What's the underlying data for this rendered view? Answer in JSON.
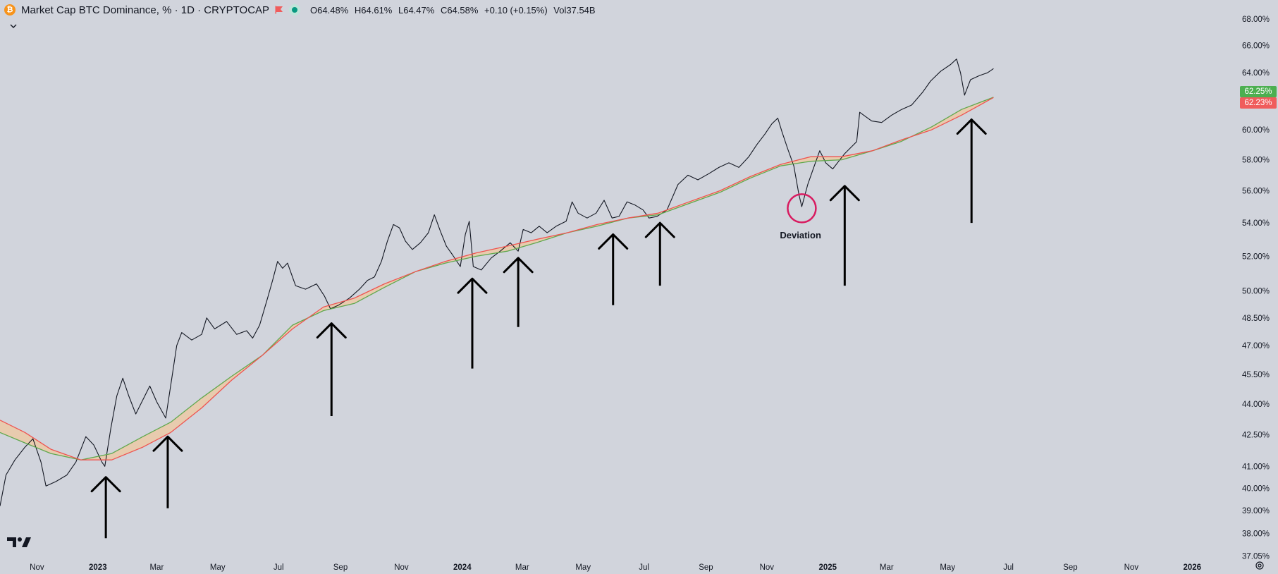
{
  "header": {
    "title": "Market Cap BTC Dominance, % · 1D · CRYPTOCAP",
    "btc_glyph": "₿",
    "open": "O64.48%",
    "high": "H64.61%",
    "low": "L64.47%",
    "close": "C64.58%",
    "change": "+0.10 (+0.15%)",
    "volume": "Vol37.54B",
    "icons": [
      "bitcoin-icon",
      "flag-icon",
      "market-status-icon",
      "chevron-down-icon",
      "tradingview-logo",
      "settings-icon"
    ]
  },
  "price_tags": {
    "green": {
      "label": "62.25%",
      "color": "#4caf50"
    },
    "red": {
      "label": "62.23%",
      "color": "#f05c5c"
    }
  },
  "annotation": {
    "label": "Deviation",
    "color": "#d81b60"
  },
  "chart_data": {
    "type": "line",
    "scale": "log",
    "ylim": [
      37.0,
      68.5
    ],
    "y_ticks": [
      "68.00%",
      "66.00%",
      "64.00%",
      "62.00%",
      "60.00%",
      "58.00%",
      "56.00%",
      "54.00%",
      "52.00%",
      "50.00%",
      "48.50%",
      "47.00%",
      "45.50%",
      "44.00%",
      "42.50%",
      "41.00%",
      "40.00%",
      "39.00%",
      "38.00%",
      "37.05%"
    ],
    "y_tick_values": [
      68,
      66,
      64,
      62,
      60,
      58,
      56,
      54,
      52,
      50,
      48.5,
      47,
      45.5,
      44,
      42.5,
      41,
      40,
      39,
      38,
      37.05
    ],
    "x_ticks": [
      {
        "label": "Nov",
        "bold": false,
        "date": "2022-11-01"
      },
      {
        "label": "2023",
        "bold": true,
        "date": "2023-01-01"
      },
      {
        "label": "Mar",
        "bold": false,
        "date": "2023-03-01"
      },
      {
        "label": "May",
        "bold": false,
        "date": "2023-05-01"
      },
      {
        "label": "Jul",
        "bold": false,
        "date": "2023-07-01"
      },
      {
        "label": "Sep",
        "bold": false,
        "date": "2023-09-01"
      },
      {
        "label": "Nov",
        "bold": false,
        "date": "2023-11-01"
      },
      {
        "label": "2024",
        "bold": true,
        "date": "2024-01-01"
      },
      {
        "label": "Mar",
        "bold": false,
        "date": "2024-03-01"
      },
      {
        "label": "May",
        "bold": false,
        "date": "2024-05-01"
      },
      {
        "label": "Jul",
        "bold": false,
        "date": "2024-07-01"
      },
      {
        "label": "Sep",
        "bold": false,
        "date": "2024-09-01"
      },
      {
        "label": "Nov",
        "bold": false,
        "date": "2024-11-01"
      },
      {
        "label": "2025",
        "bold": true,
        "date": "2025-01-01"
      },
      {
        "label": "Mar",
        "bold": false,
        "date": "2025-03-01"
      },
      {
        "label": "May",
        "bold": false,
        "date": "2025-05-01"
      },
      {
        "label": "Jul",
        "bold": false,
        "date": "2025-07-01"
      },
      {
        "label": "Sep",
        "bold": false,
        "date": "2025-09-01"
      },
      {
        "label": "Nov",
        "bold": false,
        "date": "2025-11-01"
      },
      {
        "label": "2026",
        "bold": true,
        "date": "2026-01-01"
      }
    ],
    "xlim": [
      "2022-09-25",
      "2026-02-15"
    ],
    "series": [
      {
        "color": "#131722",
        "points": [
          [
            "2022-09-25",
            39.2
          ],
          [
            "2022-10-01",
            40.6
          ],
          [
            "2022-10-10",
            41.3
          ],
          [
            "2022-10-20",
            41.9
          ],
          [
            "2022-10-28",
            42.3
          ],
          [
            "2022-11-05",
            41.2
          ],
          [
            "2022-11-10",
            40.1
          ],
          [
            "2022-11-20",
            40.3
          ],
          [
            "2022-12-01",
            40.6
          ],
          [
            "2022-12-10",
            41.2
          ],
          [
            "2022-12-20",
            42.4
          ],
          [
            "2022-12-28",
            42.0
          ],
          [
            "2023-01-05",
            41.2
          ],
          [
            "2023-01-08",
            41.0
          ],
          [
            "2023-01-14",
            42.8
          ],
          [
            "2023-01-20",
            44.4
          ],
          [
            "2023-01-26",
            45.3
          ],
          [
            "2023-02-01",
            44.4
          ],
          [
            "2023-02-08",
            43.5
          ],
          [
            "2023-02-15",
            44.2
          ],
          [
            "2023-02-22",
            44.9
          ],
          [
            "2023-03-01",
            44.1
          ],
          [
            "2023-03-10",
            43.3
          ],
          [
            "2023-03-17",
            45.6
          ],
          [
            "2023-03-21",
            47.0
          ],
          [
            "2023-03-26",
            47.7
          ],
          [
            "2023-04-05",
            47.3
          ],
          [
            "2023-04-15",
            47.6
          ],
          [
            "2023-04-20",
            48.5
          ],
          [
            "2023-04-28",
            47.9
          ],
          [
            "2023-05-10",
            48.3
          ],
          [
            "2023-05-20",
            47.6
          ],
          [
            "2023-05-30",
            47.8
          ],
          [
            "2023-06-05",
            47.4
          ],
          [
            "2023-06-12",
            48.1
          ],
          [
            "2023-06-20",
            49.6
          ],
          [
            "2023-06-25",
            50.6
          ],
          [
            "2023-06-30",
            51.7
          ],
          [
            "2023-07-05",
            51.3
          ],
          [
            "2023-07-10",
            51.6
          ],
          [
            "2023-07-18",
            50.3
          ],
          [
            "2023-07-28",
            50.1
          ],
          [
            "2023-08-08",
            50.4
          ],
          [
            "2023-08-16",
            49.7
          ],
          [
            "2023-08-22",
            49.0
          ],
          [
            "2023-08-30",
            49.2
          ],
          [
            "2023-09-10",
            49.6
          ],
          [
            "2023-09-20",
            50.1
          ],
          [
            "2023-09-28",
            50.6
          ],
          [
            "2023-10-05",
            50.8
          ],
          [
            "2023-10-12",
            51.7
          ],
          [
            "2023-10-18",
            52.9
          ],
          [
            "2023-10-24",
            53.9
          ],
          [
            "2023-10-30",
            53.7
          ],
          [
            "2023-11-05",
            52.9
          ],
          [
            "2023-11-12",
            52.4
          ],
          [
            "2023-11-20",
            52.8
          ],
          [
            "2023-11-28",
            53.4
          ],
          [
            "2023-12-04",
            54.5
          ],
          [
            "2023-12-10",
            53.5
          ],
          [
            "2023-12-16",
            52.6
          ],
          [
            "2023-12-22",
            52.1
          ],
          [
            "2023-12-30",
            51.4
          ],
          [
            "2024-01-04",
            53.3
          ],
          [
            "2024-01-08",
            54.1
          ],
          [
            "2024-01-12",
            51.4
          ],
          [
            "2024-01-20",
            51.2
          ],
          [
            "2024-01-30",
            51.9
          ],
          [
            "2024-02-08",
            52.3
          ],
          [
            "2024-02-18",
            52.8
          ],
          [
            "2024-02-26",
            52.3
          ],
          [
            "2024-03-02",
            53.6
          ],
          [
            "2024-03-10",
            53.4
          ],
          [
            "2024-03-18",
            53.8
          ],
          [
            "2024-03-26",
            53.4
          ],
          [
            "2024-04-04",
            53.8
          ],
          [
            "2024-04-14",
            54.1
          ],
          [
            "2024-04-20",
            55.3
          ],
          [
            "2024-04-26",
            54.6
          ],
          [
            "2024-05-05",
            54.3
          ],
          [
            "2024-05-14",
            54.6
          ],
          [
            "2024-05-22",
            55.4
          ],
          [
            "2024-05-30",
            54.3
          ],
          [
            "2024-06-06",
            54.4
          ],
          [
            "2024-06-14",
            55.3
          ],
          [
            "2024-06-22",
            55.1
          ],
          [
            "2024-06-30",
            54.8
          ],
          [
            "2024-07-06",
            54.3
          ],
          [
            "2024-07-14",
            54.4
          ],
          [
            "2024-07-24",
            54.8
          ],
          [
            "2024-08-04",
            56.4
          ],
          [
            "2024-08-14",
            57.0
          ],
          [
            "2024-08-24",
            56.7
          ],
          [
            "2024-09-04",
            57.1
          ],
          [
            "2024-09-14",
            57.5
          ],
          [
            "2024-09-24",
            57.8
          ],
          [
            "2024-10-04",
            57.5
          ],
          [
            "2024-10-14",
            58.2
          ],
          [
            "2024-10-22",
            59.0
          ],
          [
            "2024-10-30",
            59.7
          ],
          [
            "2024-11-06",
            60.4
          ],
          [
            "2024-11-12",
            60.8
          ],
          [
            "2024-11-16",
            59.9
          ],
          [
            "2024-11-22",
            58.7
          ],
          [
            "2024-11-28",
            57.6
          ],
          [
            "2024-12-03",
            55.8
          ],
          [
            "2024-12-06",
            55.0
          ],
          [
            "2024-12-12",
            56.4
          ],
          [
            "2024-12-18",
            57.5
          ],
          [
            "2024-12-24",
            58.6
          ],
          [
            "2024-12-30",
            57.8
          ],
          [
            "2025-01-06",
            57.4
          ],
          [
            "2025-01-12",
            57.9
          ],
          [
            "2025-01-18",
            58.4
          ],
          [
            "2025-01-24",
            58.8
          ],
          [
            "2025-01-30",
            59.2
          ],
          [
            "2025-02-02",
            61.2
          ],
          [
            "2025-02-06",
            61.0
          ],
          [
            "2025-02-14",
            60.6
          ],
          [
            "2025-02-24",
            60.5
          ],
          [
            "2025-03-06",
            61.0
          ],
          [
            "2025-03-16",
            61.4
          ],
          [
            "2025-03-26",
            61.7
          ],
          [
            "2025-04-06",
            62.6
          ],
          [
            "2025-04-14",
            63.4
          ],
          [
            "2025-04-24",
            64.1
          ],
          [
            "2025-05-04",
            64.6
          ],
          [
            "2025-05-10",
            65.0
          ],
          [
            "2025-05-14",
            64.0
          ],
          [
            "2025-05-18",
            62.4
          ],
          [
            "2025-05-24",
            63.5
          ],
          [
            "2025-06-02",
            63.8
          ],
          [
            "2025-06-10",
            64.0
          ],
          [
            "2025-06-16",
            64.3
          ]
        ]
      },
      {
        "color": "#5fa84e",
        "points": [
          [
            "2022-09-25",
            42.6
          ],
          [
            "2022-10-20",
            42.1
          ],
          [
            "2022-11-15",
            41.6
          ],
          [
            "2022-12-15",
            41.3
          ],
          [
            "2023-01-15",
            41.6
          ],
          [
            "2023-02-15",
            42.4
          ],
          [
            "2023-03-15",
            43.1
          ],
          [
            "2023-04-15",
            44.3
          ],
          [
            "2023-05-15",
            45.4
          ],
          [
            "2023-06-15",
            46.5
          ],
          [
            "2023-07-15",
            48.1
          ],
          [
            "2023-08-15",
            48.9
          ],
          [
            "2023-09-15",
            49.3
          ],
          [
            "2023-10-15",
            50.2
          ],
          [
            "2023-11-15",
            51.1
          ],
          [
            "2023-12-15",
            51.6
          ],
          [
            "2024-01-15",
            52.0
          ],
          [
            "2024-02-15",
            52.3
          ],
          [
            "2024-03-15",
            52.8
          ],
          [
            "2024-04-15",
            53.4
          ],
          [
            "2024-05-15",
            53.8
          ],
          [
            "2024-06-15",
            54.3
          ],
          [
            "2024-07-15",
            54.5
          ],
          [
            "2024-08-15",
            55.2
          ],
          [
            "2024-09-15",
            55.9
          ],
          [
            "2024-10-15",
            56.8
          ],
          [
            "2024-11-15",
            57.6
          ],
          [
            "2024-12-15",
            57.9
          ],
          [
            "2025-01-15",
            58.0
          ],
          [
            "2025-02-15",
            58.6
          ],
          [
            "2025-03-15",
            59.2
          ],
          [
            "2025-04-15",
            60.2
          ],
          [
            "2025-05-15",
            61.4
          ],
          [
            "2025-06-16",
            62.25
          ]
        ]
      },
      {
        "color": "#ef5350",
        "points": [
          [
            "2022-09-25",
            43.2
          ],
          [
            "2022-10-20",
            42.6
          ],
          [
            "2022-11-15",
            41.8
          ],
          [
            "2022-12-15",
            41.3
          ],
          [
            "2023-01-15",
            41.3
          ],
          [
            "2023-02-15",
            41.9
          ],
          [
            "2023-03-15",
            42.6
          ],
          [
            "2023-04-15",
            43.8
          ],
          [
            "2023-05-15",
            45.2
          ],
          [
            "2023-06-15",
            46.5
          ],
          [
            "2023-07-15",
            47.9
          ],
          [
            "2023-08-15",
            49.1
          ],
          [
            "2023-09-15",
            49.6
          ],
          [
            "2023-10-15",
            50.4
          ],
          [
            "2023-11-15",
            51.1
          ],
          [
            "2023-12-15",
            51.7
          ],
          [
            "2024-01-15",
            52.2
          ],
          [
            "2024-02-15",
            52.6
          ],
          [
            "2024-03-15",
            53.0
          ],
          [
            "2024-04-15",
            53.4
          ],
          [
            "2024-05-15",
            53.9
          ],
          [
            "2024-06-15",
            54.3
          ],
          [
            "2024-07-15",
            54.6
          ],
          [
            "2024-08-15",
            55.3
          ],
          [
            "2024-09-15",
            56.0
          ],
          [
            "2024-10-15",
            56.9
          ],
          [
            "2024-11-15",
            57.7
          ],
          [
            "2024-12-15",
            58.2
          ],
          [
            "2025-01-15",
            58.2
          ],
          [
            "2025-02-15",
            58.6
          ],
          [
            "2025-03-15",
            59.3
          ],
          [
            "2025-04-15",
            60.0
          ],
          [
            "2025-05-15",
            61.0
          ],
          [
            "2025-06-16",
            62.23
          ]
        ]
      }
    ],
    "band_fill": "#ecc9a6",
    "arrows": [
      {
        "date": "2023-01-09",
        "tip": 40.5,
        "base": 37.8
      },
      {
        "date": "2023-03-12",
        "tip": 42.4,
        "base": 39.1
      },
      {
        "date": "2023-08-23",
        "tip": 48.2,
        "base": 43.4
      },
      {
        "date": "2024-01-11",
        "tip": 50.7,
        "base": 45.8
      },
      {
        "date": "2024-02-26",
        "tip": 51.9,
        "base": 48.0
      },
      {
        "date": "2024-05-31",
        "tip": 53.3,
        "base": 49.2
      },
      {
        "date": "2024-07-17",
        "tip": 54.0,
        "base": 50.3
      },
      {
        "date": "2025-01-18",
        "tip": 56.3,
        "base": 50.3
      },
      {
        "date": "2025-05-25",
        "tip": 60.7,
        "base": 54.0
      }
    ],
    "deviation_marker": {
      "date": "2024-12-06",
      "value": 54.9
    }
  }
}
